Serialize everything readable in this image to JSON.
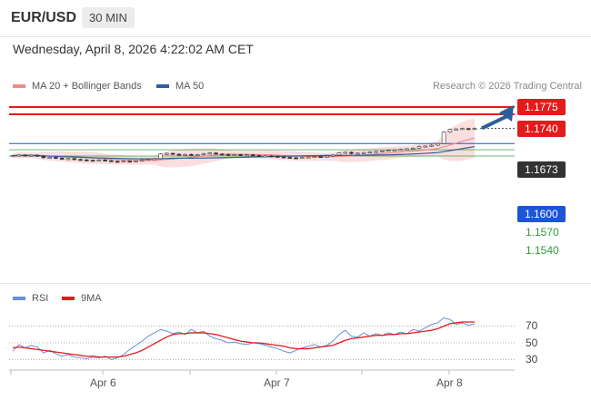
{
  "header": {
    "symbol": "EUR/USD",
    "timeframe": "30 MIN",
    "timestamp": "Wednesday, April 8, 2026 4:22:02 AM CET"
  },
  "legend": {
    "main": [
      {
        "label": "MA 20 + Bollinger Bands",
        "color": "#f08a8a"
      },
      {
        "label": "MA 50",
        "color": "#2e5d9e"
      }
    ],
    "rsi": [
      {
        "label": "RSI",
        "color": "#6b8fd8"
      },
      {
        "label": "9MA",
        "color": "#e31b1b"
      }
    ],
    "credit": "Research © 2026 Trading Central"
  },
  "levels": {
    "resistance_1": {
      "label": "1.1775",
      "value": 1.1775,
      "color": "#e31b1b"
    },
    "resistance_2": {
      "label": "1.1740",
      "value": 1.174,
      "color": "#e31b1b"
    },
    "last_price": {
      "label": "1.1673",
      "value": 1.1673,
      "color": "#333333"
    },
    "pivot": {
      "label": "1.1600",
      "value": 1.16,
      "color": "#1c56d6"
    },
    "support_1": {
      "label": "1.1570",
      "value": 1.157,
      "color": "#2e9d38"
    },
    "support_2": {
      "label": "1.1540",
      "value": 1.154,
      "color": "#2e9d38"
    }
  },
  "x_axis": {
    "dates": [
      "Apr 6",
      "Apr 7",
      "Apr 8"
    ]
  },
  "rsi_axis": {
    "ticks": [
      "70",
      "50",
      "30"
    ]
  },
  "chart_data": [
    {
      "type": "candlestick",
      "title": "",
      "x": "30-minute bars, Apr 6 – Apr 8",
      "price_range": [
        1.1495,
        1.1795
      ],
      "series": [
        {
          "name": "Price",
          "close_path": [
            1.1542,
            1.1545,
            1.1543,
            1.1544,
            1.154,
            1.1532,
            1.1534,
            1.153,
            1.1526,
            1.1528,
            1.1524,
            1.1522,
            1.152,
            1.1519,
            1.1521,
            1.1518,
            1.1515,
            1.1514,
            1.1516,
            1.1513,
            1.1517,
            1.1522,
            1.1525,
            1.1528,
            1.155,
            1.1553,
            1.1549,
            1.1546,
            1.1548,
            1.1544,
            1.1547,
            1.1552,
            1.1555,
            1.155,
            1.1548,
            1.1545,
            1.1547,
            1.1544,
            1.1546,
            1.1543,
            1.154,
            1.1541,
            1.1539,
            1.1536,
            1.1534,
            1.1532,
            1.1531,
            1.1534,
            1.1536,
            1.1538,
            1.1537,
            1.154,
            1.1545,
            1.1555,
            1.1558,
            1.1552,
            1.1554,
            1.1557,
            1.156,
            1.1562,
            1.1565,
            1.1568,
            1.157,
            1.1572,
            1.1575,
            1.1578,
            1.1585,
            1.1588,
            1.1592,
            1.16,
            1.1655,
            1.1668,
            1.167,
            1.1672,
            1.1668,
            1.1673
          ]
        },
        {
          "name": "MA 20",
          "color": "#f08a8a"
        },
        {
          "name": "MA 50",
          "color": "#2e5d9e"
        }
      ],
      "annotations": [
        "Arrow pointing up toward 1.1775"
      ]
    },
    {
      "type": "line",
      "title": "RSI",
      "ylim": [
        20,
        80
      ],
      "ticks": [
        70,
        50,
        30
      ],
      "series": [
        {
          "name": "RSI",
          "color": "#6b8fd8",
          "values": [
            40,
            48,
            44,
            47,
            45,
            38,
            41,
            37,
            34,
            36,
            33,
            32,
            31,
            33,
            32,
            34,
            30,
            32,
            36,
            42,
            47,
            52,
            58,
            62,
            66,
            64,
            61,
            63,
            60,
            66,
            62,
            64,
            58,
            55,
            53,
            50,
            51,
            49,
            48,
            50,
            49,
            47,
            45,
            43,
            40,
            38,
            41,
            44,
            46,
            48,
            45,
            47,
            52,
            60,
            65,
            58,
            57,
            62,
            58,
            61,
            59,
            62,
            60,
            63,
            61,
            66,
            64,
            68,
            72,
            74,
            80,
            78,
            72,
            74,
            71,
            73
          ]
        },
        {
          "name": "9MA",
          "color": "#e31b1b",
          "values": [
            44,
            45,
            44,
            43,
            42,
            41,
            40,
            39,
            38,
            37,
            36,
            35,
            34,
            34,
            33,
            33,
            33,
            33,
            34,
            36,
            38,
            41,
            45,
            49,
            53,
            57,
            60,
            61,
            61,
            62,
            62,
            62,
            61,
            60,
            58,
            56,
            54,
            52,
            51,
            50,
            50,
            49,
            48,
            47,
            46,
            44,
            43,
            43,
            43,
            44,
            45,
            46,
            47,
            50,
            53,
            55,
            56,
            57,
            58,
            59,
            59,
            60,
            60,
            61,
            61,
            62,
            63,
            64,
            65,
            67,
            70,
            73,
            74,
            75,
            75,
            75
          ]
        }
      ]
    }
  ]
}
